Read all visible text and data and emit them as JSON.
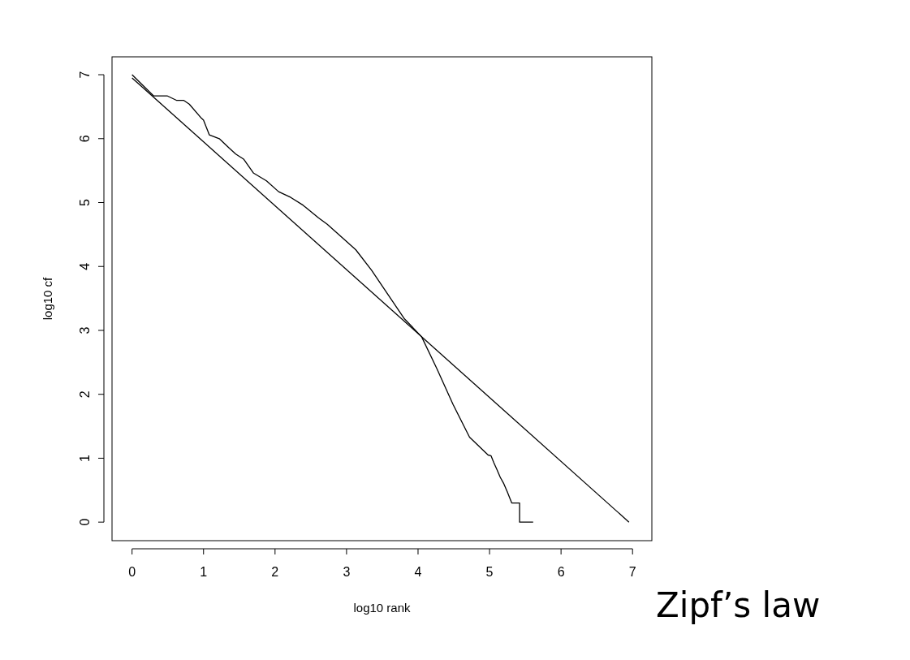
{
  "chart_data": {
    "type": "line",
    "title": "Zipf’s law",
    "xlabel": "log10 rank",
    "ylabel": "log10 cf",
    "xlim": [
      -0.28,
      7.27
    ],
    "ylim": [
      -0.29,
      7.28
    ],
    "xticks": [
      0,
      1,
      2,
      3,
      4,
      5,
      6,
      7
    ],
    "yticks": [
      0,
      1,
      2,
      3,
      4,
      5,
      6,
      7
    ],
    "grid": false,
    "line_style": "solid",
    "marker": "none",
    "series": [
      {
        "color": "#000000",
        "x": [
          0,
          0.3,
          0.49,
          0.62,
          0.72,
          0.8,
          0.97,
          1.0,
          1.08,
          1.22,
          1.36,
          1.45,
          1.56,
          1.7,
          1.88,
          2.05,
          2.22,
          2.39,
          2.61,
          2.73,
          3.01,
          3.13,
          3.35,
          3.58,
          3.81,
          4.05,
          4.26,
          4.49,
          4.72,
          4.98,
          5.02,
          5.06,
          5.1,
          5.15,
          5.2,
          5.25,
          5.31,
          5.42,
          5.42,
          5.61
        ],
        "values": [
          7.0,
          6.67,
          6.67,
          6.6,
          6.6,
          6.54,
          6.32,
          6.29,
          6.06,
          6.0,
          5.85,
          5.76,
          5.68,
          5.46,
          5.34,
          5.17,
          5.08,
          4.96,
          4.76,
          4.66,
          4.38,
          4.26,
          3.94,
          3.56,
          3.18,
          2.9,
          2.41,
          1.84,
          1.33,
          1.05,
          1.04,
          0.93,
          0.83,
          0.7,
          0.6,
          0.47,
          0.3,
          0.3,
          0,
          0
        ]
      },
      {
        "color": "#000000",
        "x": [
          0,
          6.95
        ],
        "values": [
          6.95,
          0
        ]
      }
    ]
  }
}
